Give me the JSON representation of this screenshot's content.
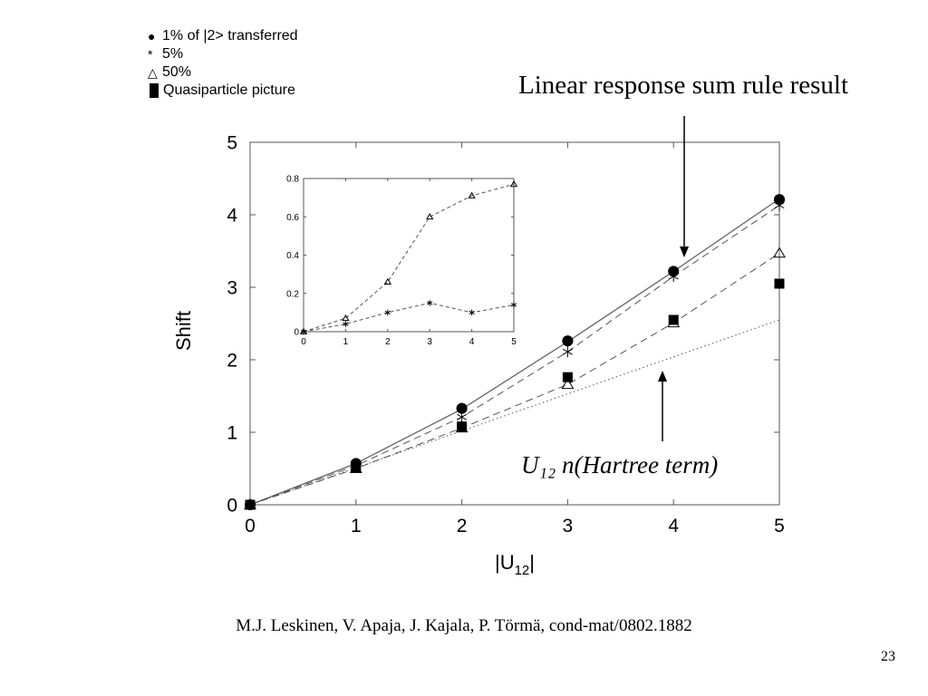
{
  "legend": {
    "items": [
      {
        "symbol": "●",
        "label": "1% of |2> transferred"
      },
      {
        "symbol": "*",
        "label": "5%"
      },
      {
        "symbol": "△",
        "label": "50%"
      },
      {
        "symbol": "■",
        "label": "Quasiparticle picture"
      }
    ]
  },
  "annotations": {
    "linear_response": "Linear response sum rule result",
    "hartree": "U₁₂ n(Hartree term)"
  },
  "citation": "M.J. Leskinen, V. Apaja, J. Kajala, P. Törmä, cond-mat/0802.1882",
  "page_number": "23",
  "chart_data": [
    {
      "type": "line",
      "xlabel": "|U12|",
      "ylabel": "Shift",
      "xlim": [
        0,
        5
      ],
      "ylim": [
        0,
        5
      ],
      "x_ticks": [
        "0",
        "1",
        "2",
        "3",
        "4",
        "5"
      ],
      "y_ticks": [
        "0",
        "1",
        "2",
        "3",
        "4",
        "5"
      ],
      "series": [
        {
          "name": "Linear response sum rule result",
          "style": "solid",
          "x": [
            0,
            1,
            2,
            3,
            4,
            5
          ],
          "y": [
            0,
            0.57,
            1.32,
            2.25,
            3.22,
            4.22
          ]
        },
        {
          "name": "1% of |2> transferred",
          "marker": "circle",
          "x": [
            0,
            1,
            2,
            3,
            4,
            5
          ],
          "y": [
            0,
            0.57,
            1.33,
            2.26,
            3.22,
            4.21
          ]
        },
        {
          "name": "5%",
          "marker": "star",
          "style": "dashed",
          "x": [
            0,
            1,
            2,
            3,
            4,
            5
          ],
          "y": [
            0,
            0.54,
            1.21,
            2.11,
            3.15,
            4.13
          ]
        },
        {
          "name": "50%",
          "marker": "triangle",
          "style": "dashed",
          "x": [
            0,
            1,
            2,
            3,
            4,
            5
          ],
          "y": [
            0,
            0.5,
            1.06,
            1.66,
            2.51,
            3.47
          ]
        },
        {
          "name": "Quasiparticle picture",
          "marker": "square",
          "x": [
            0,
            1,
            2,
            3,
            4,
            5
          ],
          "y": [
            0,
            0.51,
            1.08,
            1.76,
            2.55,
            3.05
          ]
        },
        {
          "name": "U12 n(Hartree term)",
          "style": "dotted",
          "x": [
            0,
            5
          ],
          "y": [
            0,
            2.55
          ]
        }
      ]
    },
    {
      "type": "line",
      "role": "inset",
      "xlim": [
        0,
        5
      ],
      "ylim": [
        0,
        0.8
      ],
      "x_ticks": [
        "0",
        "1",
        "2",
        "3",
        "4",
        "5"
      ],
      "y_ticks": [
        "0",
        "0.2",
        "0.4",
        "0.6",
        "0.8"
      ],
      "series": [
        {
          "name": "50%",
          "marker": "triangle",
          "style": "dashed",
          "x": [
            0,
            1,
            2,
            3,
            4,
            5
          ],
          "y": [
            0,
            0.07,
            0.26,
            0.6,
            0.71,
            0.77
          ]
        },
        {
          "name": "5%",
          "marker": "star",
          "style": "dashed",
          "x": [
            0,
            1,
            2,
            3,
            4,
            5
          ],
          "y": [
            0,
            0.04,
            0.1,
            0.15,
            0.1,
            0.14
          ]
        }
      ]
    }
  ]
}
